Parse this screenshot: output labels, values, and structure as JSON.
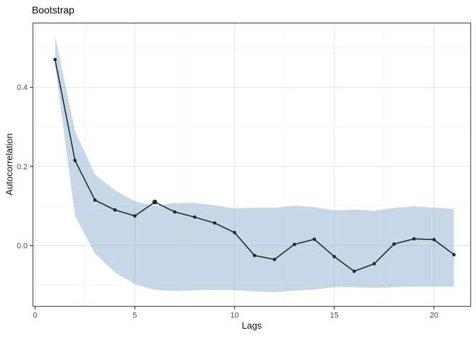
{
  "chart_data": {
    "type": "line",
    "title": "Bootstrap",
    "xlabel": "Lags",
    "ylabel": "Autocorrelation",
    "x": [
      1,
      2,
      3,
      4,
      5,
      6,
      7,
      8,
      9,
      10,
      11,
      12,
      13,
      14,
      15,
      16,
      17,
      18,
      19,
      20,
      21
    ],
    "series": [
      {
        "name": "autocorrelation",
        "values": [
          0.47,
          0.215,
          0.115,
          0.09,
          0.075,
          0.11,
          0.085,
          0.072,
          0.057,
          0.033,
          -0.025,
          -0.035,
          0.003,
          0.016,
          -0.028,
          -0.065,
          -0.046,
          0.004,
          0.017,
          0.015,
          -0.023
        ]
      }
    ],
    "ribbon": {
      "name": "bootstrap-confidence-band",
      "upper": [
        0.53,
        0.29,
        0.18,
        0.14,
        0.112,
        0.1,
        0.108,
        0.108,
        0.102,
        0.094,
        0.096,
        0.096,
        0.1,
        0.097,
        0.089,
        0.091,
        0.088,
        0.095,
        0.099,
        0.096,
        0.093
      ],
      "lower": [
        0.455,
        0.075,
        -0.02,
        -0.068,
        -0.098,
        -0.112,
        -0.115,
        -0.113,
        -0.112,
        -0.113,
        -0.116,
        -0.118,
        -0.114,
        -0.111,
        -0.105,
        -0.105,
        -0.107,
        -0.105,
        -0.104,
        -0.104,
        -0.104
      ]
    },
    "highlight_lag": 6,
    "axes": {
      "x_major_ticks": [
        0,
        5,
        10,
        15,
        20
      ],
      "x_tick_labels": [
        "0",
        "5",
        "10",
        "15",
        "20"
      ],
      "x_minor_ticks": [
        2.5,
        7.5,
        12.5,
        17.5
      ],
      "y_major_ticks": [
        0.0,
        0.2,
        0.4
      ],
      "y_tick_labels": [
        "0.0",
        "0.2",
        "0.4"
      ],
      "y_minor_ticks": [
        -0.1,
        0.1,
        0.3,
        0.5
      ],
      "xlim": [
        -0.11,
        21.84
      ],
      "ylim": [
        -0.1536,
        0.5625
      ],
      "grid": true
    },
    "legend": null,
    "colors": {
      "line": "#1e2c3a",
      "point": "#1b2836",
      "ribbon_fill": "rgba(70,130,180,0.30)",
      "grid_major": "#e4e4e4",
      "grid_minor": "#f2f2f2",
      "panel_border": "#545454",
      "axis_text": "#4d4d4d",
      "tick_mark": "#333333",
      "background": "#ffffff"
    }
  }
}
